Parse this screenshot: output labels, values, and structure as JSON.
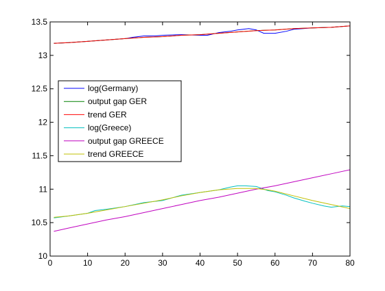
{
  "chart_data": {
    "type": "line",
    "title": "",
    "xlabel": "",
    "ylabel": "",
    "xlim": [
      0,
      80
    ],
    "ylim": [
      10,
      13.5
    ],
    "xticks": [
      0,
      10,
      20,
      30,
      40,
      50,
      60,
      70,
      80
    ],
    "yticks": [
      10,
      10.5,
      11,
      11.5,
      12,
      12.5,
      13,
      13.5
    ],
    "ytick_labels": [
      "10",
      "10.5",
      "11",
      "11.5",
      "12",
      "12.5",
      "13",
      "13.5"
    ],
    "grid": false,
    "legend_position": "left-center",
    "series": [
      {
        "name": "log(Germany)",
        "color": "#0000ff",
        "x": [
          1,
          5,
          10,
          15,
          20,
          22,
          25,
          28,
          30,
          35,
          40,
          42,
          45,
          48,
          50,
          53,
          55,
          57,
          60,
          63,
          65,
          70,
          75,
          80
        ],
        "y": [
          13.18,
          13.19,
          13.21,
          13.23,
          13.25,
          13.27,
          13.29,
          13.29,
          13.3,
          13.31,
          13.3,
          13.3,
          13.34,
          13.36,
          13.38,
          13.4,
          13.38,
          13.33,
          13.33,
          13.36,
          13.39,
          13.41,
          13.42,
          13.44
        ]
      },
      {
        "name": "output gap GER",
        "color": "#008000",
        "x": [
          1,
          5,
          10,
          15,
          20,
          25,
          30,
          35,
          40,
          45,
          50,
          55,
          60,
          65,
          70,
          75,
          80
        ],
        "y": [
          13.18,
          13.19,
          13.21,
          13.23,
          13.25,
          13.27,
          13.28,
          13.3,
          13.31,
          13.33,
          13.35,
          13.37,
          13.38,
          13.4,
          13.41,
          13.42,
          13.44
        ]
      },
      {
        "name": "trend GER",
        "color": "#ff0000",
        "x": [
          1,
          5,
          10,
          15,
          20,
          25,
          30,
          35,
          40,
          45,
          50,
          55,
          60,
          65,
          70,
          75,
          80
        ],
        "y": [
          13.18,
          13.19,
          13.21,
          13.23,
          13.25,
          13.27,
          13.28,
          13.3,
          13.31,
          13.33,
          13.35,
          13.37,
          13.38,
          13.4,
          13.41,
          13.42,
          13.44
        ]
      },
      {
        "name": "log(Greece)",
        "color": "#00bfbf",
        "x": [
          1,
          5,
          10,
          12,
          15,
          20,
          25,
          30,
          35,
          40,
          45,
          48,
          50,
          52,
          55,
          58,
          60,
          63,
          65,
          68,
          70,
          73,
          75,
          78,
          80
        ],
        "y": [
          10.57,
          10.6,
          10.64,
          10.68,
          10.7,
          10.74,
          10.8,
          10.83,
          10.91,
          10.95,
          10.99,
          11.03,
          11.05,
          11.05,
          11.04,
          10.98,
          10.96,
          10.91,
          10.87,
          10.82,
          10.79,
          10.75,
          10.73,
          10.75,
          10.74
        ]
      },
      {
        "name": "output gap GREECE",
        "color": "#bf00bf",
        "x": [
          1,
          5,
          10,
          15,
          20,
          25,
          30,
          35,
          40,
          45,
          50,
          55,
          60,
          65,
          70,
          75,
          80
        ],
        "y": [
          10.37,
          10.42,
          10.48,
          10.54,
          10.59,
          10.65,
          10.71,
          10.77,
          10.83,
          10.88,
          10.94,
          11.0,
          11.05,
          11.11,
          11.17,
          11.23,
          11.29
        ]
      },
      {
        "name": "trend GREECE",
        "color": "#bfbf00",
        "x": [
          1,
          5,
          10,
          15,
          20,
          25,
          30,
          35,
          40,
          45,
          50,
          55,
          58,
          60,
          65,
          70,
          75,
          80
        ],
        "y": [
          10.58,
          10.6,
          10.64,
          10.69,
          10.74,
          10.79,
          10.84,
          10.9,
          10.95,
          10.99,
          11.01,
          11.01,
          10.99,
          10.97,
          10.9,
          10.83,
          10.77,
          10.71
        ]
      }
    ]
  }
}
